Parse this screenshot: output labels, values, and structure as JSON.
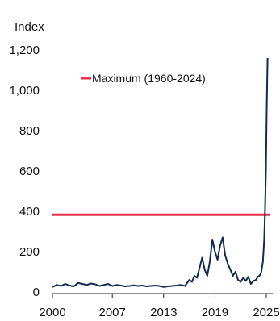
{
  "chart_data": {
    "type": "line",
    "title": "",
    "ylabel": "Index",
    "xlabel": "",
    "ylim": [
      0,
      1200
    ],
    "xlim": [
      2000,
      2025
    ],
    "grid": false,
    "legend_placement": "top-left",
    "y_ticks": [
      0,
      200,
      400,
      600,
      800,
      1000,
      1200
    ],
    "y_tick_labels": [
      "0",
      "200",
      "400",
      "600",
      "800",
      "1,000",
      "1,200"
    ],
    "x_ticks": [
      2000,
      2007,
      2013,
      2019,
      2025
    ],
    "x_tick_labels": [
      "2000",
      "2007",
      "2013",
      "2019",
      "2025"
    ],
    "reference_line": {
      "label": "Maximum (1960-2024)",
      "value": 383,
      "color": "#e8304f"
    },
    "series": [
      {
        "color": "#132a52",
        "x": [
          2000.0,
          2000.5,
          2001.0,
          2001.5,
          2002.0,
          2002.5,
          2003.0,
          2003.5,
          2004.0,
          2004.5,
          2005.0,
          2005.5,
          2006.0,
          2006.5,
          2007.0,
          2007.5,
          2008.0,
          2008.5,
          2009.0,
          2009.5,
          2010.0,
          2010.5,
          2011.0,
          2011.5,
          2012.0,
          2012.5,
          2013.0,
          2013.5,
          2014.0,
          2014.5,
          2015.0,
          2015.5,
          2016.0,
          2016.3,
          2016.6,
          2016.9,
          2017.2,
          2017.5,
          2017.8,
          2018.1,
          2018.4,
          2018.7,
          2019.0,
          2019.3,
          2019.6,
          2019.9,
          2020.2,
          2020.5,
          2020.8,
          2021.1,
          2021.4,
          2021.7,
          2022.0,
          2022.3,
          2022.6,
          2022.9,
          2023.2,
          2023.5,
          2023.8,
          2024.0,
          2024.2,
          2024.4,
          2024.6,
          2024.75,
          2024.85,
          2024.95,
          2025.05,
          2025.15
        ],
        "values": [
          25,
          35,
          30,
          40,
          32,
          28,
          45,
          40,
          35,
          42,
          38,
          30,
          35,
          40,
          30,
          35,
          32,
          28,
          30,
          33,
          30,
          32,
          28,
          30,
          32,
          30,
          25,
          28,
          30,
          32,
          35,
          30,
          60,
          50,
          80,
          70,
          120,
          170,
          110,
          80,
          150,
          260,
          200,
          160,
          230,
          270,
          180,
          140,
          110,
          80,
          100,
          60,
          50,
          70,
          55,
          75,
          40,
          55,
          60,
          75,
          80,
          95,
          150,
          260,
          400,
          600,
          900,
          1160
        ]
      }
    ]
  }
}
